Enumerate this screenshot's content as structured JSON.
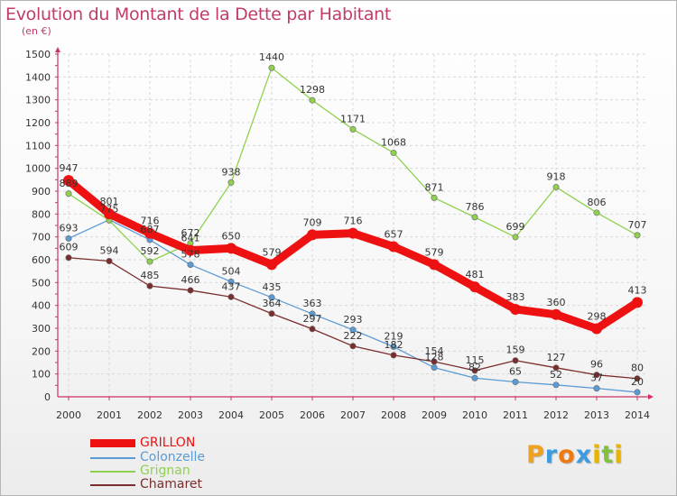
{
  "title": "Evolution du Montant de la Dette par Habitant",
  "subtitle": "(en €)",
  "logo": {
    "letters": [
      "P",
      "r",
      "o",
      "x",
      "i",
      "t",
      "i"
    ],
    "colors": [
      "#f0a020",
      "#3d9be0",
      "#f07a10",
      "#3d9be0",
      "#e9b400",
      "#80c23a",
      "#e9b400"
    ]
  },
  "chart_data": {
    "type": "line",
    "x": [
      "2000",
      "2001",
      "2002",
      "2003",
      "2004",
      "2005",
      "2006",
      "2007",
      "2008",
      "2009",
      "2010",
      "2011",
      "2012",
      "2013",
      "2014"
    ],
    "ylim": [
      0,
      1500
    ],
    "yticks": [
      0,
      100,
      200,
      300,
      400,
      500,
      600,
      700,
      800,
      900,
      1000,
      1100,
      1200,
      1300,
      1400,
      1500
    ],
    "grid": true,
    "legend_position": "bottom-left",
    "series": [
      {
        "name": "Colonzelle",
        "color": "#5b9bd5",
        "values": [
          693,
          775,
          687,
          578,
          504,
          435,
          363,
          293,
          219,
          128,
          82,
          65,
          52,
          37,
          20
        ],
        "labels": [
          "693",
          "775",
          "687",
          "578",
          "504",
          "435",
          "363",
          "293",
          "219",
          "128",
          "82",
          "65",
          "52",
          "37",
          "20"
        ]
      },
      {
        "name": "Grignan",
        "color": "#8fd14f",
        "values": [
          889,
          772,
          592,
          672,
          938,
          1440,
          1298,
          1171,
          1068,
          871,
          786,
          699,
          918,
          806,
          707
        ],
        "labels": [
          "889",
          "",
          "592",
          "672",
          "938",
          "1440",
          "1298",
          "1171",
          "1068",
          "871",
          "786",
          "699",
          "918",
          "806",
          "707"
        ]
      },
      {
        "name": "Chamaret",
        "color": "#7b2c2c",
        "values": [
          609,
          594,
          485,
          466,
          437,
          364,
          297,
          222,
          182,
          154,
          115,
          159,
          127,
          96,
          80
        ],
        "labels": [
          "609",
          "594",
          "485",
          "466",
          "437",
          "364",
          "297",
          "222",
          "182",
          "154",
          "115",
          "159",
          "127",
          "96",
          "80"
        ]
      },
      {
        "name": "GRILLON",
        "color": "#ee1111",
        "values": [
          947,
          801,
          716,
          641,
          650,
          579,
          709,
          716,
          657,
          579,
          481,
          383,
          360,
          298,
          413
        ],
        "labels": [
          "947",
          "801",
          "716",
          "641",
          "650",
          "579",
          "709",
          "716",
          "657",
          "579",
          "481",
          "383",
          "360",
          "298",
          "413"
        ]
      }
    ]
  },
  "legend": [
    {
      "name": "GRILLON",
      "color": "#ee1111"
    },
    {
      "name": "Colonzelle",
      "color": "#5b9bd5"
    },
    {
      "name": "Grignan",
      "color": "#8fd14f"
    },
    {
      "name": "Chamaret",
      "color": "#7b2c2c"
    }
  ]
}
